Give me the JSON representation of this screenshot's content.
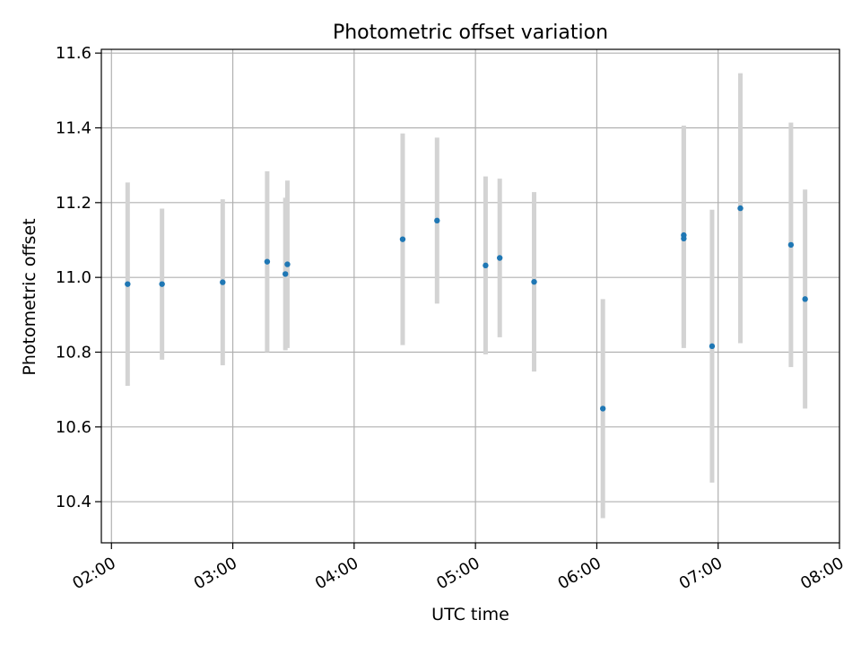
{
  "chart_data": {
    "type": "scatter",
    "title": "Photometric offset variation",
    "xlabel": "UTC time",
    "ylabel": "Photometric offset",
    "xlim": [
      "01:55",
      "08:00"
    ],
    "ylim": [
      10.29,
      11.61
    ],
    "x_ticks": [
      "02:00",
      "03:00",
      "04:00",
      "05:00",
      "06:00",
      "07:00",
      "08:00"
    ],
    "y_ticks": [
      "10.4",
      "10.6",
      "10.8",
      "11.0",
      "11.2",
      "11.4",
      "11.6"
    ],
    "grid": true,
    "marker_color": "#1f77b4",
    "errorbar_color": "#d3d3d3",
    "points": [
      {
        "x": "02:08",
        "y": 10.982,
        "err": 0.272
      },
      {
        "x": "02:25",
        "y": 10.982,
        "err": 0.202
      },
      {
        "x": "02:55",
        "y": 10.987,
        "err": 0.222
      },
      {
        "x": "03:17",
        "y": 11.042,
        "err": 0.242
      },
      {
        "x": "03:26",
        "y": 11.009,
        "err": 0.204
      },
      {
        "x": "03:27",
        "y": 11.035,
        "err": 0.224
      },
      {
        "x": "04:24",
        "y": 11.102,
        "err": 0.283
      },
      {
        "x": "04:41",
        "y": 11.152,
        "err": 0.222
      },
      {
        "x": "05:05",
        "y": 11.032,
        "err": 0.238
      },
      {
        "x": "05:12",
        "y": 11.052,
        "err": 0.212
      },
      {
        "x": "05:29",
        "y": 10.988,
        "err": 0.24
      },
      {
        "x": "06:03",
        "y": 10.649,
        "err": 0.293
      },
      {
        "x": "06:43",
        "y": 11.113,
        "err": 0.293
      },
      {
        "x": "06:43",
        "y": 11.104,
        "err": 0.293
      },
      {
        "x": "06:57",
        "y": 10.816,
        "err": 0.365
      },
      {
        "x": "07:11",
        "y": 11.185,
        "err": 0.361
      },
      {
        "x": "07:36",
        "y": 11.087,
        "err": 0.327
      },
      {
        "x": "07:43",
        "y": 10.942,
        "err": 0.293
      }
    ]
  }
}
